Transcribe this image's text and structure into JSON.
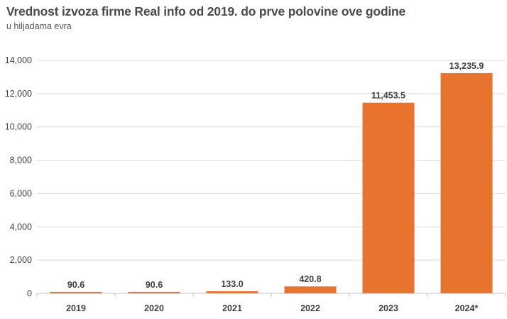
{
  "chart_data": {
    "type": "bar",
    "title": "Vrednost izvoza firme Real info od 2019. do prve polovine ove godine",
    "subtitle": "u hiljadama evra",
    "categories": [
      "2019",
      "2020",
      "2021",
      "2022",
      "2023",
      "2024*"
    ],
    "values": [
      90.6,
      90.6,
      133.0,
      420.8,
      11453.5,
      13235.9
    ],
    "value_labels": [
      "90.6",
      "90.6",
      "133.0",
      "420.8",
      "11,453.5",
      "13,235.9"
    ],
    "yticks": [
      0,
      2000,
      4000,
      6000,
      8000,
      10000,
      12000,
      14000
    ],
    "ytick_labels": [
      "0",
      "2,000",
      "4,000",
      "6,000",
      "8,000",
      "10,000",
      "12,000",
      "14,000"
    ],
    "ylim": [
      0,
      14000
    ],
    "xlabel": "",
    "ylabel": "",
    "grid": true,
    "bar_color": "#e8732f",
    "grid_color": "#d9d9d9"
  }
}
